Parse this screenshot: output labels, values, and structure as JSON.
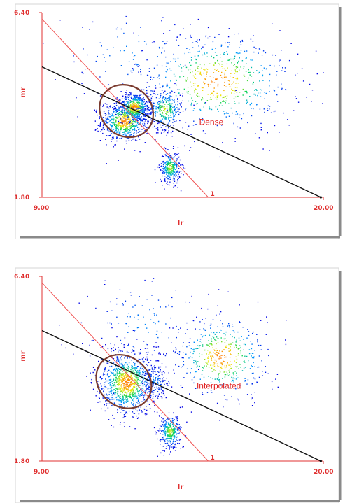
{
  "chart_data": [
    {
      "type": "scatter",
      "annotation": "Dense",
      "xlabel": "Ir",
      "ylabel": "mr",
      "xlim": [
        9.0,
        20.0
      ],
      "ylim": [
        1.8,
        6.4
      ],
      "x_ticks": [
        "9.00",
        "20.00"
      ],
      "y_ticks": [
        "6.40",
        "1.80"
      ],
      "red_line": {
        "label": "1",
        "points": [
          [
            9.0,
            6.24
          ],
          [
            15.5,
            1.8
          ]
        ]
      },
      "black_line": {
        "points": [
          [
            9.0,
            5.05
          ],
          [
            19.9,
            1.8
          ]
        ]
      },
      "ellipse": {
        "cx": 12.3,
        "cy": 3.95,
        "rx": 1.1,
        "ry": 0.95,
        "angle": -40,
        "color": "#7a3a2e"
      },
      "clusters": [
        {
          "x": 12.2,
          "y": 3.7,
          "sx": 0.45,
          "sy": 0.25,
          "n": 700
        },
        {
          "x": 12.6,
          "y": 4.05,
          "sx": 0.3,
          "sy": 0.18,
          "n": 450
        },
        {
          "x": 13.8,
          "y": 4.0,
          "sx": 0.35,
          "sy": 0.25,
          "n": 300
        },
        {
          "x": 14.0,
          "y": 2.55,
          "sx": 0.2,
          "sy": 0.2,
          "n": 300
        },
        {
          "x": 15.8,
          "y": 4.7,
          "sx": 1.6,
          "sy": 0.65,
          "n": 650
        },
        {
          "x": 12.5,
          "y": 5.4,
          "sx": 1.6,
          "sy": 0.7,
          "n": 110
        }
      ]
    },
    {
      "type": "scatter",
      "annotation": "Interpolated",
      "xlabel": "Ir",
      "ylabel": "mr",
      "xlim": [
        9.0,
        20.0
      ],
      "ylim": [
        1.8,
        6.4
      ],
      "x_ticks": [
        "9.00",
        "20.00"
      ],
      "y_ticks": [
        "6.40",
        "1.80"
      ],
      "red_line": {
        "label": "1",
        "points": [
          [
            9.0,
            6.24
          ],
          [
            15.5,
            1.8
          ]
        ]
      },
      "black_line": {
        "points": [
          [
            9.0,
            5.05
          ],
          [
            19.9,
            1.8
          ]
        ]
      },
      "ellipse": {
        "cx": 12.2,
        "cy": 3.78,
        "rx": 1.15,
        "ry": 0.95,
        "angle": -40,
        "color": "#7a3a2e"
      },
      "clusters": [
        {
          "x": 12.3,
          "y": 3.75,
          "sx": 0.55,
          "sy": 0.4,
          "n": 1000
        },
        {
          "x": 14.0,
          "y": 2.55,
          "sx": 0.22,
          "sy": 0.22,
          "n": 320
        },
        {
          "x": 16.0,
          "y": 4.4,
          "sx": 1.0,
          "sy": 0.55,
          "n": 480
        },
        {
          "x": 13.0,
          "y": 5.2,
          "sx": 1.3,
          "sy": 0.75,
          "n": 140
        },
        {
          "x": 13.4,
          "y": 3.8,
          "sx": 0.25,
          "sy": 0.25,
          "n": 150
        }
      ]
    }
  ]
}
